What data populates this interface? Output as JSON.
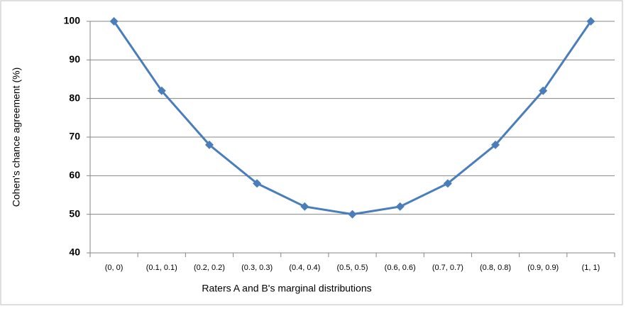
{
  "chart_data": {
    "type": "line",
    "x_label": "Raters A and B's marginal distributions",
    "y_label": "Cohen's chance agreement (%)",
    "categories": [
      "(0, 0)",
      "(0.1, 0.1)",
      "(0.2, 0.2)",
      "(0.3, 0.3)",
      "(0.4, 0.4)",
      "(0.5, 0.5)",
      "(0.6, 0.6)",
      "(0.7, 0.7)",
      "(0.8, 0.8)",
      "(0.9, 0.9)",
      "(1, 1)"
    ],
    "values": [
      100,
      82,
      68,
      58,
      52,
      50,
      52,
      58,
      68,
      82,
      100
    ],
    "color": "#4a7ebb",
    "ylim": [
      40,
      100
    ],
    "yticks": [
      40,
      50,
      60,
      70,
      80,
      90,
      100
    ],
    "grid": true
  }
}
